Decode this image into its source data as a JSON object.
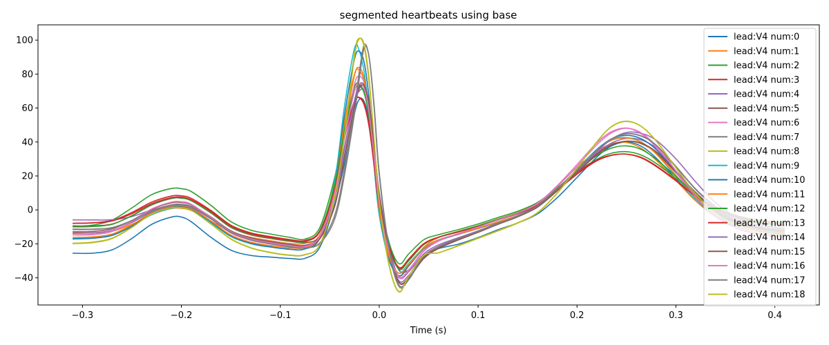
{
  "chart_data": {
    "type": "line",
    "title": "segmented heartbeats using base",
    "xlabel": "Time (s)",
    "ylabel": "",
    "xlim": [
      -0.345,
      0.445
    ],
    "ylim": [
      -56,
      109
    ],
    "xticks": [
      -0.3,
      -0.2,
      -0.1,
      0.0,
      0.1,
      0.2,
      0.3,
      0.4
    ],
    "xtick_labels": [
      "−0.3",
      "−0.2",
      "−0.1",
      "0.0",
      "0.1",
      "0.2",
      "0.3",
      "0.4"
    ],
    "yticks": [
      -40,
      -20,
      0,
      20,
      40,
      60,
      80,
      100
    ],
    "ytick_labels": [
      "−40",
      "−20",
      "0",
      "20",
      "40",
      "60",
      "80",
      "100"
    ],
    "legend_position": "upper-right",
    "x": [
      -0.31,
      -0.29,
      -0.27,
      -0.25,
      -0.23,
      -0.21,
      -0.2,
      -0.19,
      -0.17,
      -0.15,
      -0.13,
      -0.11,
      -0.09,
      -0.075,
      -0.06,
      -0.045,
      -0.035,
      -0.025,
      -0.02,
      -0.015,
      -0.01,
      -0.005,
      0.0,
      0.01,
      0.02,
      0.03,
      0.045,
      0.06,
      0.08,
      0.1,
      0.12,
      0.14,
      0.16,
      0.18,
      0.2,
      0.22,
      0.235,
      0.25,
      0.265,
      0.28,
      0.3,
      0.32,
      0.34,
      0.36,
      0.38,
      0.4,
      0.41
    ],
    "series": [
      {
        "name": "lead:V4 num:0",
        "color": "#1f77b4",
        "values": [
          -25.5,
          -25.5,
          -23.5,
          -16.8,
          -8.5,
          -4.2,
          -4.2,
          -7,
          -16.2,
          -23.7,
          -26.8,
          -27.8,
          -28.6,
          -28.5,
          -21.9,
          3.5,
          27.6,
          56.7,
          65.2,
          63.6,
          52.2,
          29.8,
          6.0,
          -19.2,
          -35.5,
          -35.3,
          -27.6,
          -22.8,
          -20.2,
          -16.3,
          -11.7,
          -7.7,
          -2.4,
          7.2,
          19.1,
          31.1,
          37.7,
          40.0,
          37.5,
          30.6,
          18.2,
          5.4,
          -3.8,
          -9.2,
          -12.1,
          -13.6,
          -14.0
        ]
      },
      {
        "name": "lead:V4 num:1",
        "color": "#ff7f0e",
        "values": [
          -13.5,
          -13.5,
          -12.6,
          -8.4,
          -2.8,
          0.8,
          0.9,
          -0.4,
          -6.6,
          -12.8,
          -16.1,
          -18.1,
          -19.8,
          -19.7,
          -14.6,
          12.3,
          47.6,
          79.4,
          83.6,
          77.1,
          58.3,
          28.9,
          0.9,
          -28.4,
          -38.9,
          -33.0,
          -22.0,
          -16.2,
          -12.6,
          -9.3,
          -5.4,
          -1.6,
          3.9,
          13.9,
          25.1,
          34.4,
          39.0,
          39.7,
          36.3,
          29.3,
          17.4,
          5.3,
          -3.4,
          -8.5,
          -11.2,
          -12.6,
          -13.0
        ]
      },
      {
        "name": "lead:V4 num:2",
        "color": "#2ca02c",
        "values": [
          -9.8,
          -9.0,
          -6.0,
          1.2,
          9.0,
          12.6,
          12.5,
          10.8,
          2.6,
          -6.9,
          -11.9,
          -14.2,
          -16.2,
          -17.2,
          -10.3,
          19.1,
          49.4,
          72.4,
          73.5,
          68.9,
          53.9,
          29.2,
          4.8,
          -19.5,
          -31.7,
          -25.8,
          -17.6,
          -14.6,
          -11.6,
          -8.3,
          -4.5,
          -0.8,
          4.4,
          13.0,
          22.3,
          29.8,
          33.4,
          34.3,
          32.3,
          27.4,
          18.6,
          8.9,
          1.4,
          -3.1,
          -5.7,
          -7.1,
          -7.6
        ]
      },
      {
        "name": "lead:V4 num:3",
        "color": "#d62728",
        "values": [
          -7.9,
          -7.6,
          -6.2,
          -1.5,
          4.6,
          8.2,
          8.3,
          6.8,
          -0.4,
          -9.0,
          -13.5,
          -15.7,
          -17.5,
          -18.0,
          -12.1,
          13.8,
          42.4,
          63.0,
          66.2,
          62.2,
          49.0,
          26.0,
          2.6,
          -21.4,
          -34.6,
          -28.8,
          -19.9,
          -16.0,
          -12.8,
          -9.4,
          -5.6,
          -1.8,
          3.5,
          12.6,
          21.9,
          29.3,
          32.3,
          32.8,
          30.6,
          25.6,
          17.1,
          7.7,
          0.4,
          -4.0,
          -6.6,
          -8.0,
          -8.5
        ]
      },
      {
        "name": "lead:V4 num:4",
        "color": "#9467bd",
        "values": [
          -5.9,
          -5.9,
          -5.8,
          -3.9,
          0.0,
          2.8,
          3.0,
          1.9,
          -5.0,
          -12.4,
          -16.5,
          -18.6,
          -20.3,
          -20.8,
          -15.6,
          8.9,
          37.5,
          63.6,
          70.1,
          70.4,
          60.2,
          36.8,
          10.1,
          -21.5,
          -39.7,
          -36.3,
          -25.9,
          -20.6,
          -16.4,
          -12.3,
          -7.8,
          -3.4,
          2.3,
          11.6,
          22.4,
          33.3,
          39.4,
          42.1,
          41.2,
          36.5,
          25.2,
          12.0,
          1.3,
          -5.6,
          -9.4,
          -11.4,
          -12.0
        ]
      },
      {
        "name": "lead:V4 num:5",
        "color": "#8c564b",
        "values": [
          -9.4,
          -9.4,
          -8.3,
          -3.5,
          2.9,
          6.7,
          6.9,
          5.4,
          -1.9,
          -10.3,
          -14.7,
          -16.8,
          -18.5,
          -19.2,
          -15.8,
          2.1,
          31.2,
          60.3,
          71.6,
          72.1,
          61.8,
          36.9,
          8.5,
          -23.6,
          -42.8,
          -40.2,
          -28.7,
          -22.7,
          -17.7,
          -13.2,
          -8.4,
          -4.0,
          1.6,
          11.3,
          22.5,
          32.9,
          38.4,
          40.4,
          39.0,
          33.6,
          21.9,
          9.3,
          -0.7,
          -7.0,
          -10.4,
          -12.0,
          -12.5
        ]
      },
      {
        "name": "lead:V4 num:6",
        "color": "#e377c2",
        "values": [
          -14.8,
          -14.6,
          -12.7,
          -6.9,
          0.4,
          4.2,
          4.4,
          2.9,
          -5.2,
          -13.6,
          -17.9,
          -20.1,
          -21.8,
          -22.3,
          -16.2,
          11.1,
          44.6,
          74.1,
          78.6,
          74.6,
          58.6,
          30.8,
          3.2,
          -26.6,
          -40.1,
          -35.5,
          -24.4,
          -18.4,
          -14.1,
          -10.2,
          -5.9,
          -1.8,
          3.9,
          14.3,
          26.7,
          39.5,
          46.1,
          48.2,
          44.8,
          36.9,
          22.2,
          7.0,
          -4.0,
          -10.6,
          -14.0,
          -15.7,
          -16.2
        ]
      },
      {
        "name": "lead:V4 num:7",
        "color": "#7f7f7f",
        "values": [
          -11.3,
          -11.3,
          -10.4,
          -6.2,
          -0.5,
          3.0,
          3.3,
          2.0,
          -5.0,
          -13.1,
          -17.5,
          -19.8,
          -21.7,
          -22.3,
          -19.4,
          -3.1,
          24.3,
          60.9,
          82.0,
          97.4,
          89.0,
          59.0,
          20.6,
          -24.0,
          -45.1,
          -41.0,
          -27.7,
          -21.7,
          -17.0,
          -12.8,
          -8.2,
          -3.7,
          2.3,
          12.3,
          23.6,
          35.2,
          41.9,
          44.9,
          43.6,
          38.2,
          25.6,
          12.2,
          2.0,
          -4.6,
          -8.3,
          -10.3,
          -10.9
        ]
      },
      {
        "name": "lead:V4 num:8",
        "color": "#bcbd22",
        "values": [
          -19.6,
          -19.0,
          -16.6,
          -10.0,
          -2.1,
          1.6,
          1.5,
          0.1,
          -8.2,
          -17.0,
          -22.2,
          -25.0,
          -26.6,
          -26.3,
          -20.4,
          8.3,
          46.0,
          92.2,
          101.1,
          95.3,
          73.6,
          38.2,
          4.2,
          -32.9,
          -48.3,
          -38.8,
          -26.7,
          -25.3,
          -21.2,
          -16.8,
          -12.4,
          -7.8,
          -1.8,
          9.8,
          24.5,
          40.1,
          49.2,
          52.3,
          49.2,
          40.7,
          24.9,
          9.3,
          -2.0,
          -8.8,
          -12.5,
          -14.5,
          -15.0
        ]
      },
      {
        "name": "lead:V4 num:9",
        "color": "#17becf",
        "values": [
          -16.8,
          -16.3,
          -14.8,
          -9.6,
          -2.8,
          1.0,
          1.2,
          -0.2,
          -7.6,
          -15.7,
          -19.9,
          -21.9,
          -23.2,
          -22.9,
          -15.8,
          17.3,
          61.6,
          95.1,
          93.4,
          80.4,
          55.9,
          24.6,
          -3.1,
          -29.6,
          -37.3,
          -31.5,
          -22.4,
          -17.6,
          -14.1,
          -10.7,
          -7.0,
          -3.2,
          2.5,
          12.2,
          23.9,
          35.7,
          41.5,
          42.6,
          40.0,
          33.0,
          19.7,
          6.4,
          -3.2,
          -9.2,
          -12.4,
          -13.9,
          -14.3
        ]
      },
      {
        "name": "lead:V4 num:10",
        "color": "#1f77b4",
        "values": [
          -17.1,
          -16.7,
          -15.0,
          -9.5,
          -2.2,
          1.8,
          2.0,
          0.6,
          -7.0,
          -15.3,
          -19.6,
          -21.7,
          -23.2,
          -23.0,
          -16.6,
          14.3,
          56.1,
          88.7,
          93.3,
          86.3,
          64.3,
          31.0,
          0.2,
          -28.9,
          -38.8,
          -32.8,
          -23.0,
          -18.0,
          -14.4,
          -11.0,
          -7.3,
          -3.6,
          1.7,
          11.4,
          23.1,
          35.3,
          41.9,
          43.9,
          41.9,
          35.6,
          22.6,
          8.9,
          -1.2,
          -7.6,
          -11.0,
          -12.7,
          -13.2
        ]
      },
      {
        "name": "lead:V4 num:11",
        "color": "#ff7f0e",
        "values": [
          -16.2,
          -15.9,
          -14.2,
          -8.8,
          -1.7,
          2.2,
          2.4,
          0.9,
          -6.6,
          -14.8,
          -19.0,
          -21.0,
          -22.4,
          -22.1,
          -15.9,
          14.1,
          52.0,
          79.9,
          82.0,
          75.2,
          56.8,
          27.8,
          0.2,
          -27.3,
          -37.3,
          -32.1,
          -22.6,
          -17.7,
          -14.2,
          -10.9,
          -7.1,
          -3.4,
          2.0,
          11.9,
          23.5,
          35.2,
          41.0,
          42.3,
          39.8,
          33.1,
          20.4,
          7.4,
          -2.1,
          -8.1,
          -11.4,
          -13.0,
          -13.5
        ]
      },
      {
        "name": "lead:V4 num:12",
        "color": "#2ca02c",
        "values": [
          -10.0,
          -9.8,
          -8.5,
          -3.3,
          3.2,
          6.9,
          7.0,
          5.4,
          -1.7,
          -9.9,
          -14.2,
          -16.4,
          -18.2,
          -18.7,
          -12.2,
          15.1,
          46.7,
          70.3,
          73.0,
          68.3,
          53.9,
          29.0,
          3.9,
          -21.9,
          -35.0,
          -29.9,
          -20.5,
          -16.1,
          -12.7,
          -9.3,
          -5.5,
          -1.7,
          3.5,
          12.7,
          22.9,
          32.0,
          36.4,
          37.7,
          35.6,
          29.9,
          19.7,
          8.9,
          0.7,
          -4.4,
          -7.3,
          -8.9,
          -9.4
        ]
      },
      {
        "name": "lead:V4 num:13",
        "color": "#d62728",
        "values": [
          -7.9,
          -7.7,
          -6.5,
          -2.2,
          3.7,
          7.3,
          7.5,
          6.0,
          -1.0,
          -9.4,
          -13.9,
          -16.1,
          -17.8,
          -18.3,
          -12.8,
          12.1,
          42.4,
          64.2,
          65.9,
          61.4,
          48.1,
          25.3,
          2.6,
          -21.5,
          -33.8,
          -29.1,
          -20.1,
          -16.2,
          -13.0,
          -9.8,
          -6.0,
          -2.3,
          2.8,
          11.6,
          21.0,
          28.9,
          32.1,
          32.9,
          30.9,
          26.0,
          17.5,
          8.1,
          0.8,
          -3.8,
          -6.5,
          -8.0,
          -8.5
        ]
      },
      {
        "name": "lead:V4 num:14",
        "color": "#9467bd",
        "values": [
          -13.8,
          -13.5,
          -12.0,
          -7.4,
          -1.2,
          2.6,
          2.8,
          1.4,
          -5.4,
          -13.3,
          -17.4,
          -19.5,
          -21.1,
          -21.4,
          -16.4,
          6.4,
          36.5,
          64.5,
          74.0,
          73.2,
          60.8,
          34.8,
          7.0,
          -24.7,
          -41.8,
          -38.4,
          -27.1,
          -21.5,
          -17.1,
          -13.0,
          -8.5,
          -4.1,
          1.7,
          11.3,
          22.5,
          34.2,
          41.7,
          45.6,
          45.1,
          41.0,
          30.1,
          16.5,
          4.3,
          -3.9,
          -8.4,
          -10.6,
          -11.3
        ]
      },
      {
        "name": "lead:V4 num:15",
        "color": "#8c564b",
        "values": [
          -12.9,
          -12.7,
          -11.1,
          -6.2,
          0.4,
          4.2,
          4.4,
          3.0,
          -4.2,
          -12.3,
          -16.6,
          -18.8,
          -20.5,
          -21.0,
          -17.0,
          2.5,
          32.4,
          61.2,
          72.5,
          72.9,
          62.0,
          37.0,
          8.8,
          -23.4,
          -42.5,
          -39.8,
          -28.3,
          -22.4,
          -17.6,
          -13.2,
          -8.5,
          -4.0,
          1.8,
          11.3,
          22.1,
          32.4,
          38.2,
          40.5,
          39.3,
          34.3,
          22.9,
          10.3,
          0.2,
          -6.3,
          -9.9,
          -11.7,
          -12.3
        ]
      },
      {
        "name": "lead:V4 num:16",
        "color": "#e377c2",
        "values": [
          -14.6,
          -14.3,
          -12.4,
          -6.8,
          0.6,
          4.6,
          4.8,
          3.3,
          -4.5,
          -12.8,
          -17.1,
          -19.3,
          -21.0,
          -21.5,
          -15.6,
          10.3,
          42.2,
          69.8,
          74.3,
          71.2,
          56.5,
          30.3,
          3.8,
          -25.0,
          -39.4,
          -35.1,
          -24.1,
          -18.1,
          -13.9,
          -10.1,
          -5.9,
          -1.9,
          3.6,
          13.7,
          25.6,
          38.3,
          45.4,
          48.1,
          45.3,
          37.8,
          23.1,
          7.9,
          -3.3,
          -10.0,
          -13.5,
          -15.3,
          -15.8
        ]
      },
      {
        "name": "lead:V4 num:17",
        "color": "#7f7f7f",
        "values": [
          -11.6,
          -11.5,
          -10.5,
          -6.3,
          -0.6,
          2.9,
          3.2,
          1.9,
          -5.1,
          -13.2,
          -17.6,
          -19.9,
          -21.8,
          -22.4,
          -19.7,
          -5.4,
          20.9,
          56.6,
          77.9,
          95.8,
          89.3,
          60.7,
          22.3,
          -22.6,
          -44.3,
          -40.5,
          -27.4,
          -21.5,
          -16.9,
          -12.7,
          -8.1,
          -3.6,
          2.4,
          12.4,
          23.7,
          35.1,
          41.8,
          44.8,
          43.4,
          38.1,
          25.6,
          12.3,
          2.1,
          -4.5,
          -8.2,
          -10.2,
          -10.8
        ]
      },
      {
        "name": "lead:V4 num:18",
        "color": "#bcbd22",
        "values": [
          -19.9,
          -19.3,
          -16.9,
          -10.3,
          -2.4,
          1.3,
          1.2,
          -0.2,
          -8.4,
          -17.2,
          -22.4,
          -25.2,
          -26.8,
          -26.5,
          -20.5,
          7.5,
          44.4,
          90.1,
          100.8,
          96.8,
          76.1,
          40.6,
          5.9,
          -32.1,
          -48.0,
          -38.9,
          -26.8,
          -25.2,
          -21.0,
          -16.6,
          -12.2,
          -7.6,
          -1.6,
          10.0,
          24.6,
          40.0,
          49.0,
          52.1,
          49.1,
          40.6,
          24.8,
          9.3,
          -1.9,
          -8.7,
          -12.4,
          -14.4,
          -14.9
        ]
      }
    ]
  }
}
